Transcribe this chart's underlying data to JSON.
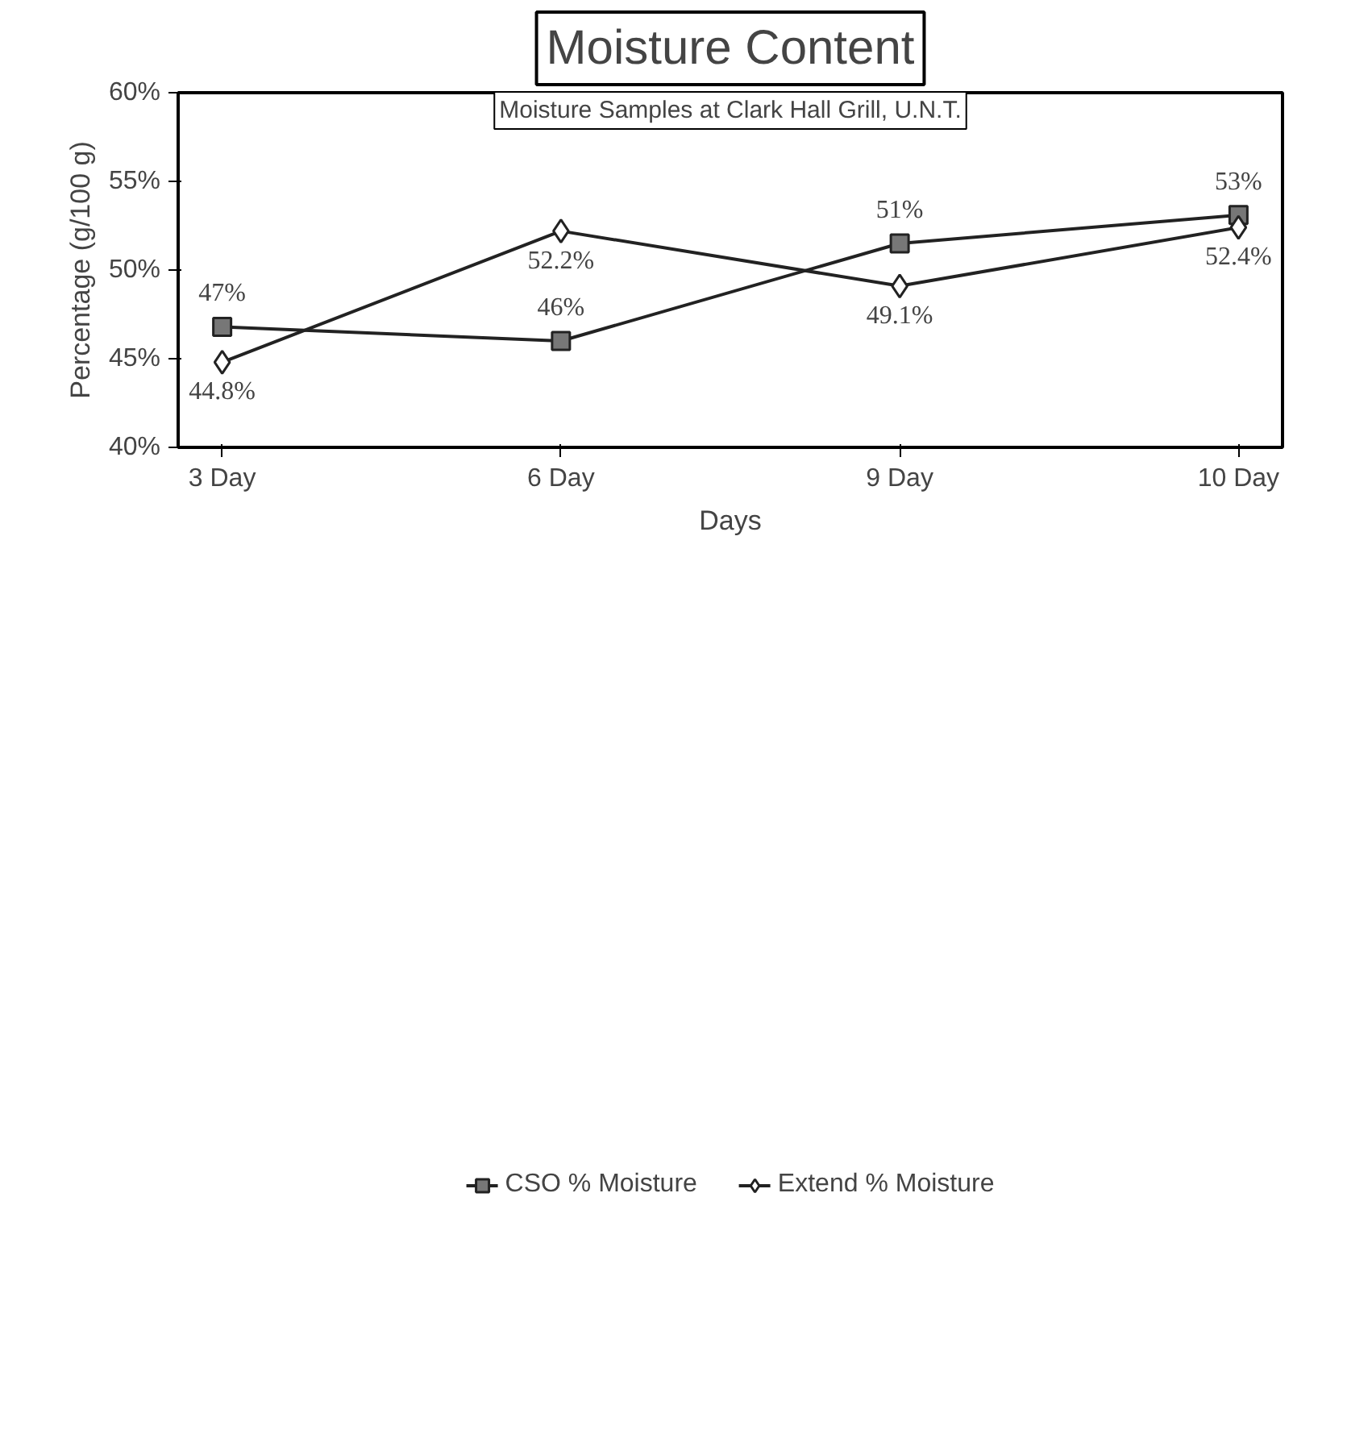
{
  "chart_data": {
    "type": "line",
    "title": "Moisture Content",
    "subtitle": "Moisture Samples at Clark Hall Grill, U.N.T.",
    "xlabel": "Days",
    "ylabel": "Percentage (g/100 g)",
    "categories": [
      "3 Day",
      "6 Day",
      "9 Day",
      "10 Day"
    ],
    "series": [
      {
        "name": "CSO % Moisture",
        "color": "#222222",
        "marker": "square",
        "values": [
          46.8,
          46.0,
          51.5,
          53.1
        ],
        "value_labels": [
          "47%",
          "46%",
          "51%",
          "53%"
        ]
      },
      {
        "name": "Extend % Moisture",
        "color": "#222222",
        "marker": "diamond",
        "values": [
          44.8,
          52.2,
          49.1,
          52.4
        ],
        "value_labels": [
          "44.8%",
          "52.2%",
          "49.1%",
          "52.4%"
        ]
      }
    ],
    "ylim": [
      40,
      60
    ],
    "yticks": [
      {
        "value": 40,
        "label": "40%"
      },
      {
        "value": 45,
        "label": "45%"
      },
      {
        "value": 50,
        "label": "50%"
      },
      {
        "value": 55,
        "label": "55%"
      },
      {
        "value": 60,
        "label": "60%"
      }
    ],
    "grid": false,
    "legend": "bottom",
    "line_style": "solid"
  }
}
